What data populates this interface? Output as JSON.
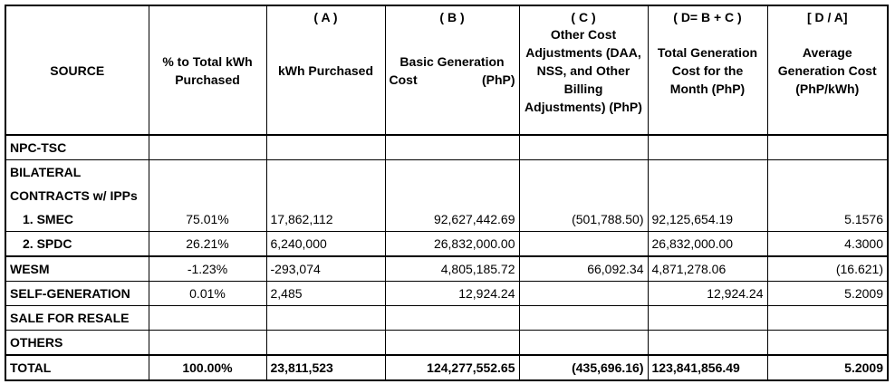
{
  "headers": {
    "source": "SOURCE",
    "pct": "% to Total kWh Purchased",
    "kwh_code": "( A )",
    "kwh": "kWh Purchased",
    "basic_code": "( B )",
    "basic_a": "Basic Generation",
    "basic_b1": "Cost",
    "basic_b2": "(PhP)",
    "other_code": "( C )",
    "other": "Other Cost Adjustments (DAA, NSS, and Other Billing Adjustments) (PhP)",
    "total_code": "( D= B + C )",
    "total": "Total Generation Cost for the Month (PhP)",
    "avg_code": "[ D / A]",
    "avg": "Average Generation Cost (PhP/kWh)"
  },
  "rows": [
    {
      "source": "NPC-TSC",
      "pct": "",
      "kwh": "",
      "basic": "",
      "other": "",
      "total": "",
      "avg": ""
    },
    {
      "source": "BILATERAL",
      "pct": "",
      "kwh": "",
      "basic": "",
      "other": "",
      "total": "",
      "avg": ""
    },
    {
      "source": "CONTRACTS w/ IPPs",
      "pct": "",
      "kwh": "",
      "basic": "",
      "other": "",
      "total": "",
      "avg": ""
    },
    {
      "source": "1.  SMEC",
      "pct": "75.01%",
      "kwh": "17,862,112",
      "basic": "92,627,442.69",
      "other": "(501,788.50)",
      "total": "92,125,654.19",
      "avg": "5.1576"
    },
    {
      "source": "2.  SPDC",
      "pct": "26.21%",
      "kwh": "6,240,000",
      "basic": "26,832,000.00",
      "other": "",
      "total": "26,832,000.00",
      "avg": "4.3000"
    },
    {
      "source": "WESM",
      "pct": "-1.23%",
      "kwh": "-293,074",
      "basic": "4,805,185.72",
      "other": "66,092.34",
      "total": "4,871,278.06",
      "avg": "(16.621)"
    },
    {
      "source": "SELF-GENERATION",
      "pct": "0.01%",
      "kwh": "2,485",
      "basic": "12,924.24",
      "other": "",
      "total": "12,924.24",
      "avg": "5.2009"
    },
    {
      "source": "SALE FOR RESALE",
      "pct": "",
      "kwh": "",
      "basic": "",
      "other": "",
      "total": "",
      "avg": ""
    },
    {
      "source": "OTHERS",
      "pct": "",
      "kwh": "",
      "basic": "",
      "other": "",
      "total": "",
      "avg": ""
    },
    {
      "source": "TOTAL",
      "pct": "100.00%",
      "kwh": "23,811,523",
      "basic": "124,277,552.65",
      "other": "(435,696.16)",
      "total": "123,841,856.49",
      "avg": "5.2009"
    }
  ]
}
